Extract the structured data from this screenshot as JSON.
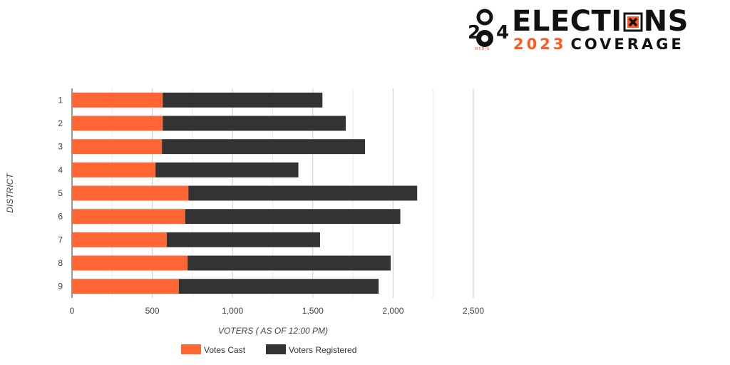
{
  "branding": {
    "logo_number": "2",
    "logo_number2": "0",
    "logo_number3": "4",
    "media_label": "MEDIA",
    "elections_pre": "ELECTI",
    "elections_post": "NS",
    "year": "2023",
    "coverage": "COVERAGE",
    "colors": {
      "orange": "#ff5a1f",
      "black": "#111111"
    }
  },
  "chart_data": {
    "type": "bar",
    "orientation": "horizontal",
    "stacked": true,
    "categories": [
      "1",
      "2",
      "3",
      "4",
      "5",
      "6",
      "7",
      "8",
      "9"
    ],
    "series": [
      {
        "name": "Votes Cast",
        "color": "#ff6633",
        "values": [
          565,
          565,
          560,
          520,
          725,
          705,
          590,
          720,
          665
        ]
      },
      {
        "name": "Voters Registered",
        "color": "#333333",
        "values": [
          995,
          1140,
          1265,
          890,
          1425,
          1340,
          955,
          1265,
          1245
        ]
      }
    ],
    "xlabel": "VOTERS ( AS OF 12:00 PM)",
    "ylabel": "DISTRICT",
    "xlim": [
      0,
      2500
    ],
    "xticks": [
      0,
      500,
      1000,
      1500,
      2000,
      2500
    ],
    "xtick_labels": [
      "0",
      "500",
      "1,000",
      "1,500",
      "2,000",
      "2,500"
    ],
    "grid": true,
    "legend_position": "bottom"
  }
}
